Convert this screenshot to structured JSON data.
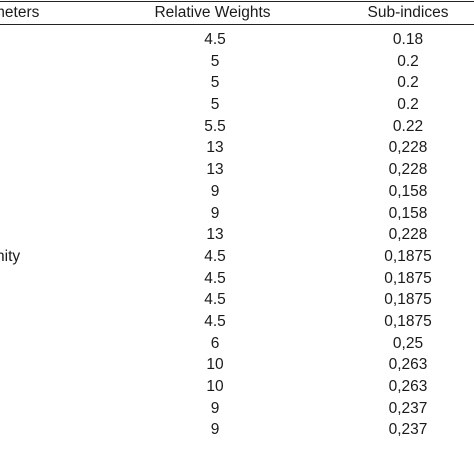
{
  "table": {
    "headers": {
      "parameters": "meters",
      "relative_weights": "Relative Weights",
      "sub_indices": "Sub-indices"
    },
    "rows": [
      {
        "parameter": "",
        "weight": "4.5",
        "sub": "0.18"
      },
      {
        "parameter": "",
        "weight": "5",
        "sub": "0.2"
      },
      {
        "parameter": "",
        "weight": "5",
        "sub": "0.2"
      },
      {
        "parameter": "",
        "weight": "5",
        "sub": "0.2"
      },
      {
        "parameter": "",
        "weight": "5.5",
        "sub": "0.22"
      },
      {
        "parameter": "",
        "weight": "13",
        "sub": "0,228"
      },
      {
        "parameter": "",
        "weight": "13",
        "sub": "0,228"
      },
      {
        "parameter": "",
        "weight": "9",
        "sub": "0,158"
      },
      {
        "parameter": "",
        "weight": "9",
        "sub": "0,158"
      },
      {
        "parameter": "",
        "weight": "13",
        "sub": "0,228"
      },
      {
        "parameter": "nity",
        "weight": "4.5",
        "sub": "0,1875"
      },
      {
        "parameter": "",
        "weight": "4.5",
        "sub": "0,1875"
      },
      {
        "parameter": "",
        "weight": "4.5",
        "sub": "0,1875"
      },
      {
        "parameter": "",
        "weight": "4.5",
        "sub": "0,1875"
      },
      {
        "parameter": "",
        "weight": "6",
        "sub": "0,25"
      },
      {
        "parameter": "",
        "weight": "10",
        "sub": "0,263"
      },
      {
        "parameter": "",
        "weight": "10",
        "sub": "0,263"
      },
      {
        "parameter": "",
        "weight": "9",
        "sub": "0,237"
      },
      {
        "parameter": "",
        "weight": "9",
        "sub": "0,237"
      }
    ]
  }
}
